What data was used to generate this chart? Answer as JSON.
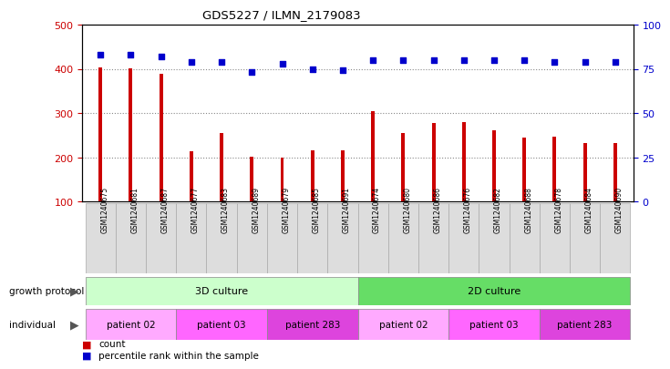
{
  "title": "GDS5227 / ILMN_2179083",
  "samples": [
    "GSM1240675",
    "GSM1240681",
    "GSM1240687",
    "GSM1240677",
    "GSM1240683",
    "GSM1240689",
    "GSM1240679",
    "GSM1240685",
    "GSM1240691",
    "GSM1240674",
    "GSM1240680",
    "GSM1240686",
    "GSM1240676",
    "GSM1240682",
    "GSM1240688",
    "GSM1240678",
    "GSM1240684",
    "GSM1240690"
  ],
  "counts": [
    403,
    402,
    388,
    213,
    255,
    201,
    200,
    215,
    217,
    305,
    256,
    278,
    280,
    262,
    245,
    246,
    233,
    232
  ],
  "percentiles": [
    83,
    83,
    82,
    79,
    79,
    73,
    78,
    75,
    74,
    80,
    80,
    80,
    80,
    80,
    80,
    79,
    79,
    79
  ],
  "ylim_left": [
    100,
    500
  ],
  "ylim_right": [
    0,
    100
  ],
  "yticks_left": [
    100,
    200,
    300,
    400,
    500
  ],
  "yticks_right": [
    0,
    25,
    50,
    75,
    100
  ],
  "bar_color": "#cc0000",
  "dot_color": "#0000cc",
  "growth_color_3d": "#ccffcc",
  "growth_color_2d": "#66dd66",
  "individual_color": "#ff88ff",
  "individual_color_alt": "#cc44cc",
  "legend_count_color": "#cc0000",
  "legend_dot_color": "#0000cc",
  "grey_bg": "#dddddd",
  "grid_color": "#555555"
}
